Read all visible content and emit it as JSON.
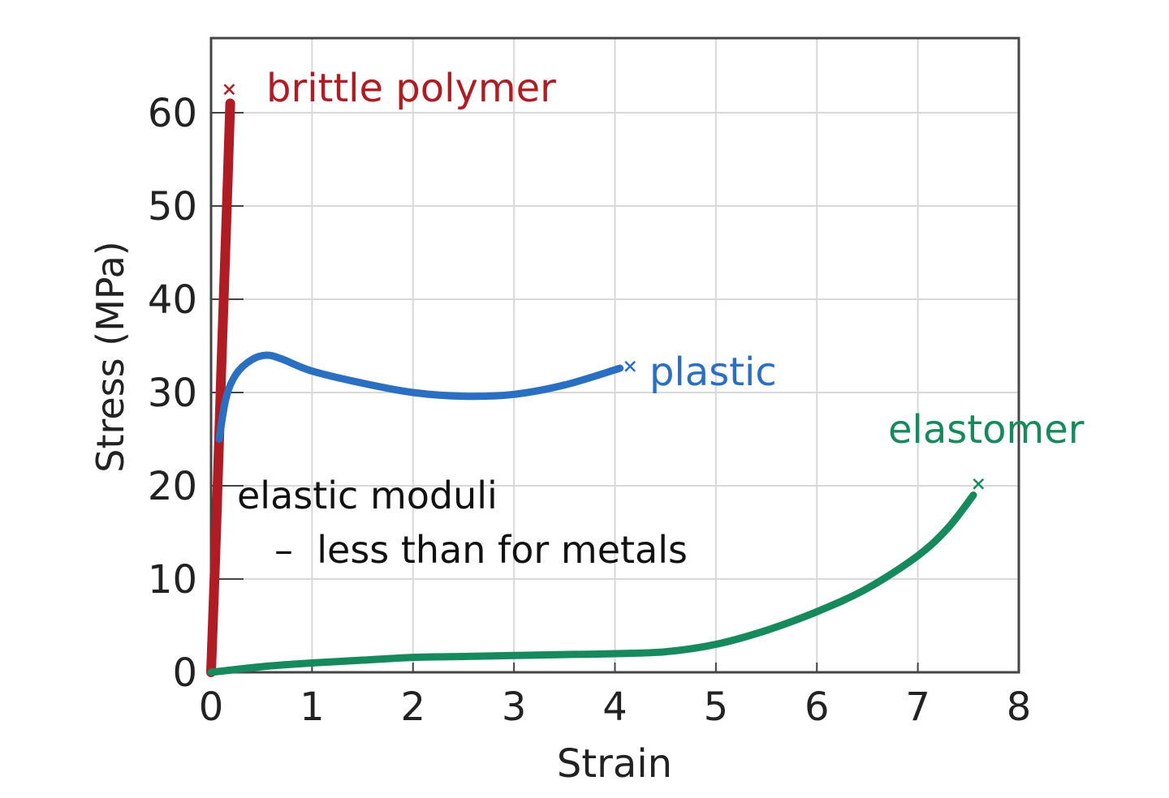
{
  "chart_data": {
    "type": "line",
    "title": "",
    "xlabel": "Strain",
    "ylabel": "Stress (MPa)",
    "xlim": [
      0,
      8
    ],
    "ylim": [
      0,
      68
    ],
    "xticks": [
      0,
      1,
      2,
      3,
      4,
      5,
      6,
      7,
      8
    ],
    "yticks": [
      0,
      10,
      20,
      30,
      40,
      50,
      60
    ],
    "grid": true,
    "series": [
      {
        "name": "brittle polymer",
        "color": "#b01c24",
        "points": [
          [
            0,
            0
          ],
          [
            0.05,
            15
          ],
          [
            0.1,
            32
          ],
          [
            0.15,
            48
          ],
          [
            0.19,
            61
          ]
        ],
        "fracture": [
          0.18,
          62.5
        ]
      },
      {
        "name": "plastic",
        "color": "#2a6fc2",
        "points": [
          [
            0.08,
            25
          ],
          [
            0.15,
            29.5
          ],
          [
            0.25,
            32
          ],
          [
            0.4,
            33.5
          ],
          [
            0.55,
            34
          ],
          [
            0.7,
            33.6
          ],
          [
            1.0,
            32.3
          ],
          [
            1.5,
            31
          ],
          [
            2.0,
            30
          ],
          [
            2.5,
            29.6
          ],
          [
            3.0,
            29.8
          ],
          [
            3.5,
            30.8
          ],
          [
            4.05,
            32.6
          ]
        ],
        "fracture": [
          4.15,
          32.8
        ]
      },
      {
        "name": "elastomer",
        "color": "#168a5c",
        "points": [
          [
            0,
            0
          ],
          [
            0.5,
            0.6
          ],
          [
            1.0,
            1.0
          ],
          [
            1.5,
            1.3
          ],
          [
            2.0,
            1.6
          ],
          [
            2.5,
            1.7
          ],
          [
            3.0,
            1.8
          ],
          [
            3.5,
            1.9
          ],
          [
            4.0,
            2.0
          ],
          [
            4.5,
            2.2
          ],
          [
            5.0,
            3.0
          ],
          [
            5.5,
            4.5
          ],
          [
            6.0,
            6.5
          ],
          [
            6.5,
            9.0
          ],
          [
            7.0,
            12.5
          ],
          [
            7.3,
            15.5
          ],
          [
            7.55,
            19.0
          ]
        ],
        "fracture": [
          7.6,
          20.2
        ]
      }
    ],
    "annotations": {
      "line1": "elastic moduli",
      "line2": "–  less than for metals"
    }
  }
}
